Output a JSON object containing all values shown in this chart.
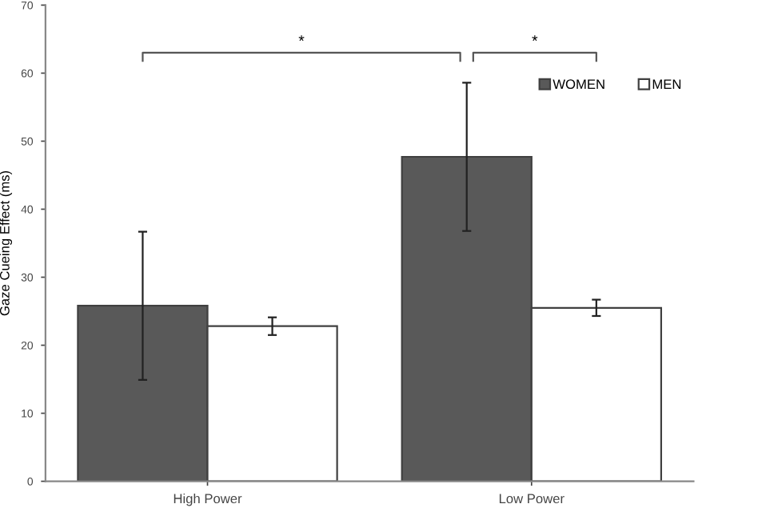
{
  "chart_data": {
    "type": "bar",
    "ylabel": "Gaze Cueing Effect (ms)",
    "categories": [
      "High Power",
      "Low Power"
    ],
    "series": [
      {
        "name": "WOMEN",
        "color": "#595959",
        "values": [
          25.8,
          47.7
        ],
        "errors": [
          10.9,
          10.9
        ]
      },
      {
        "name": "MEN",
        "color": "#ffffff",
        "values": [
          22.8,
          25.5
        ],
        "errors": [
          1.3,
          1.2
        ]
      }
    ],
    "ylim": [
      0,
      70
    ],
    "yticks": [
      0,
      10,
      20,
      30,
      40,
      50,
      60,
      70
    ],
    "grid": false,
    "legend": "top right",
    "annotations": [
      "*",
      "*"
    ]
  }
}
